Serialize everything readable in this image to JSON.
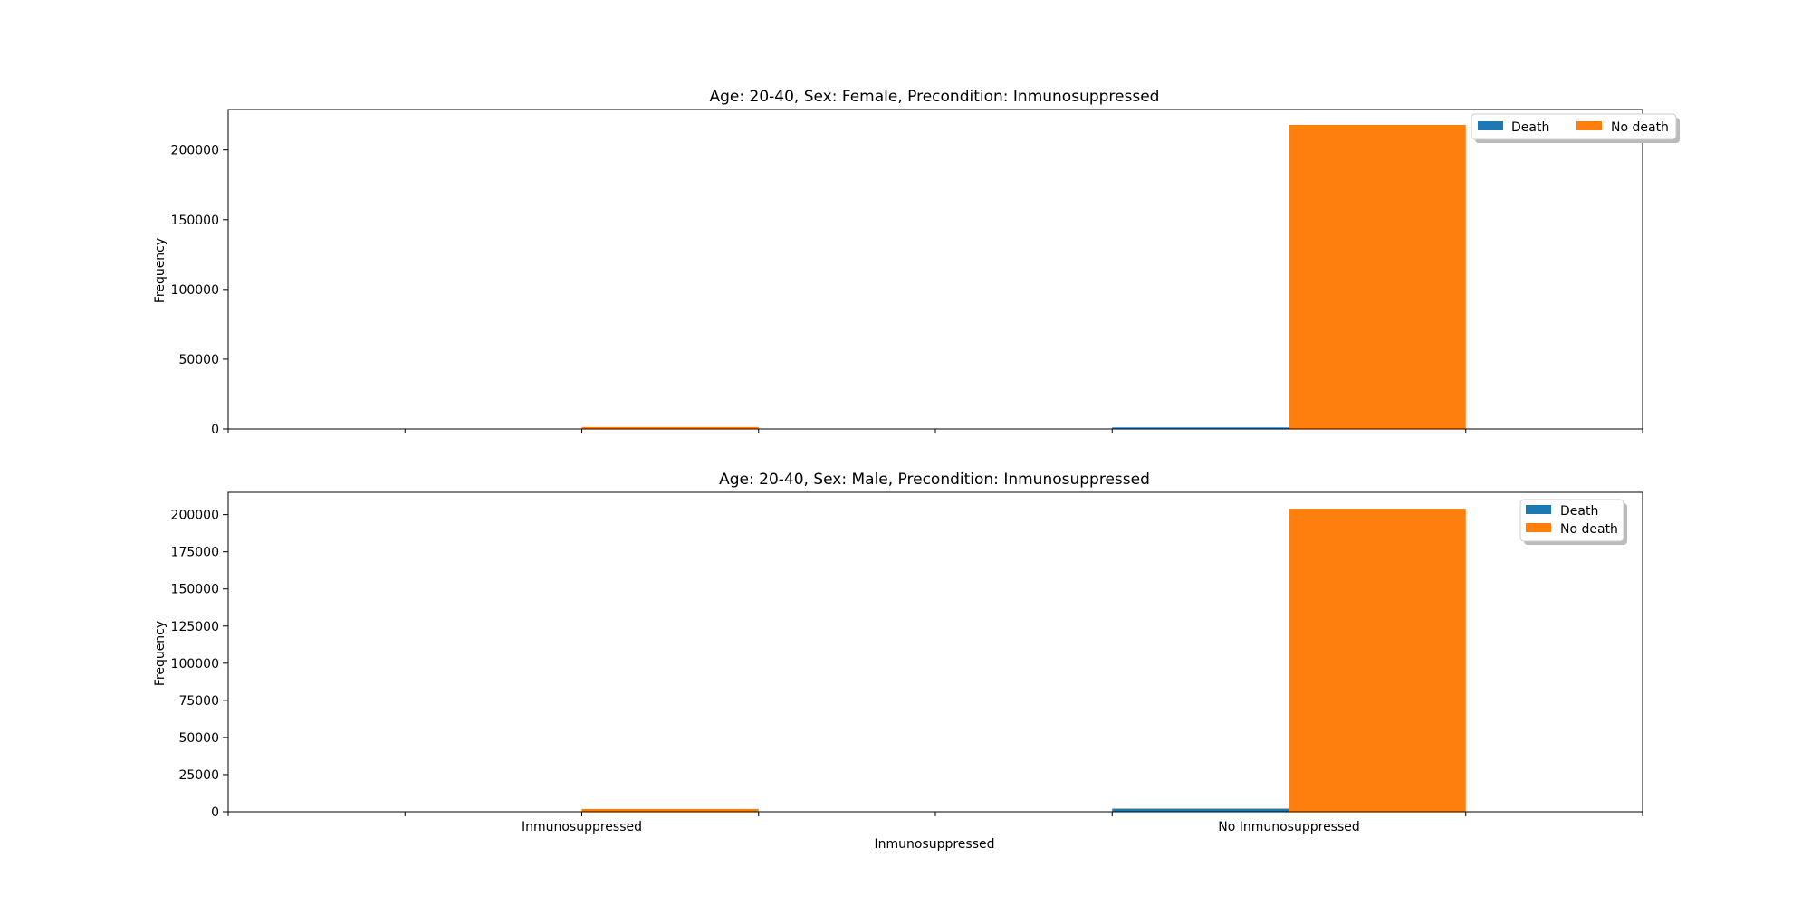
{
  "chart_data": [
    {
      "type": "bar",
      "title": "Age: 20-40, Sex: Female, Precondition: Inmunosuppressed",
      "xlabel": "",
      "ylabel": "Frequency",
      "categories": [
        "Inmunosuppressed",
        "No  Inmunosuppressed"
      ],
      "show_category_labels": false,
      "series": [
        {
          "name": "Death",
          "color": "#1f77b4",
          "values": [
            150,
            1100
          ]
        },
        {
          "name": "No death",
          "color": "#ff7f0e",
          "values": [
            1400,
            218000
          ]
        }
      ],
      "ylim": [
        0,
        229000
      ],
      "yticks": [
        0,
        50000,
        100000,
        150000,
        200000
      ],
      "grid": false,
      "legend": {
        "placement": "top-right",
        "columns": 2
      }
    },
    {
      "type": "bar",
      "title": "Age: 20-40, Sex: Male, Precondition: Inmunosuppressed",
      "xlabel": "Inmunosuppressed",
      "ylabel": "Frequency",
      "categories": [
        "Inmunosuppressed",
        "No  Inmunosuppressed"
      ],
      "show_category_labels": true,
      "series": [
        {
          "name": "Death",
          "color": "#1f77b4",
          "values": [
            200,
            2100
          ]
        },
        {
          "name": "No death",
          "color": "#ff7f0e",
          "values": [
            1900,
            204000
          ]
        }
      ],
      "ylim": [
        0,
        215000
      ],
      "yticks": [
        0,
        25000,
        50000,
        75000,
        100000,
        125000,
        150000,
        175000,
        200000
      ],
      "grid": false,
      "legend": {
        "placement": "top-right",
        "columns": 1
      }
    }
  ]
}
